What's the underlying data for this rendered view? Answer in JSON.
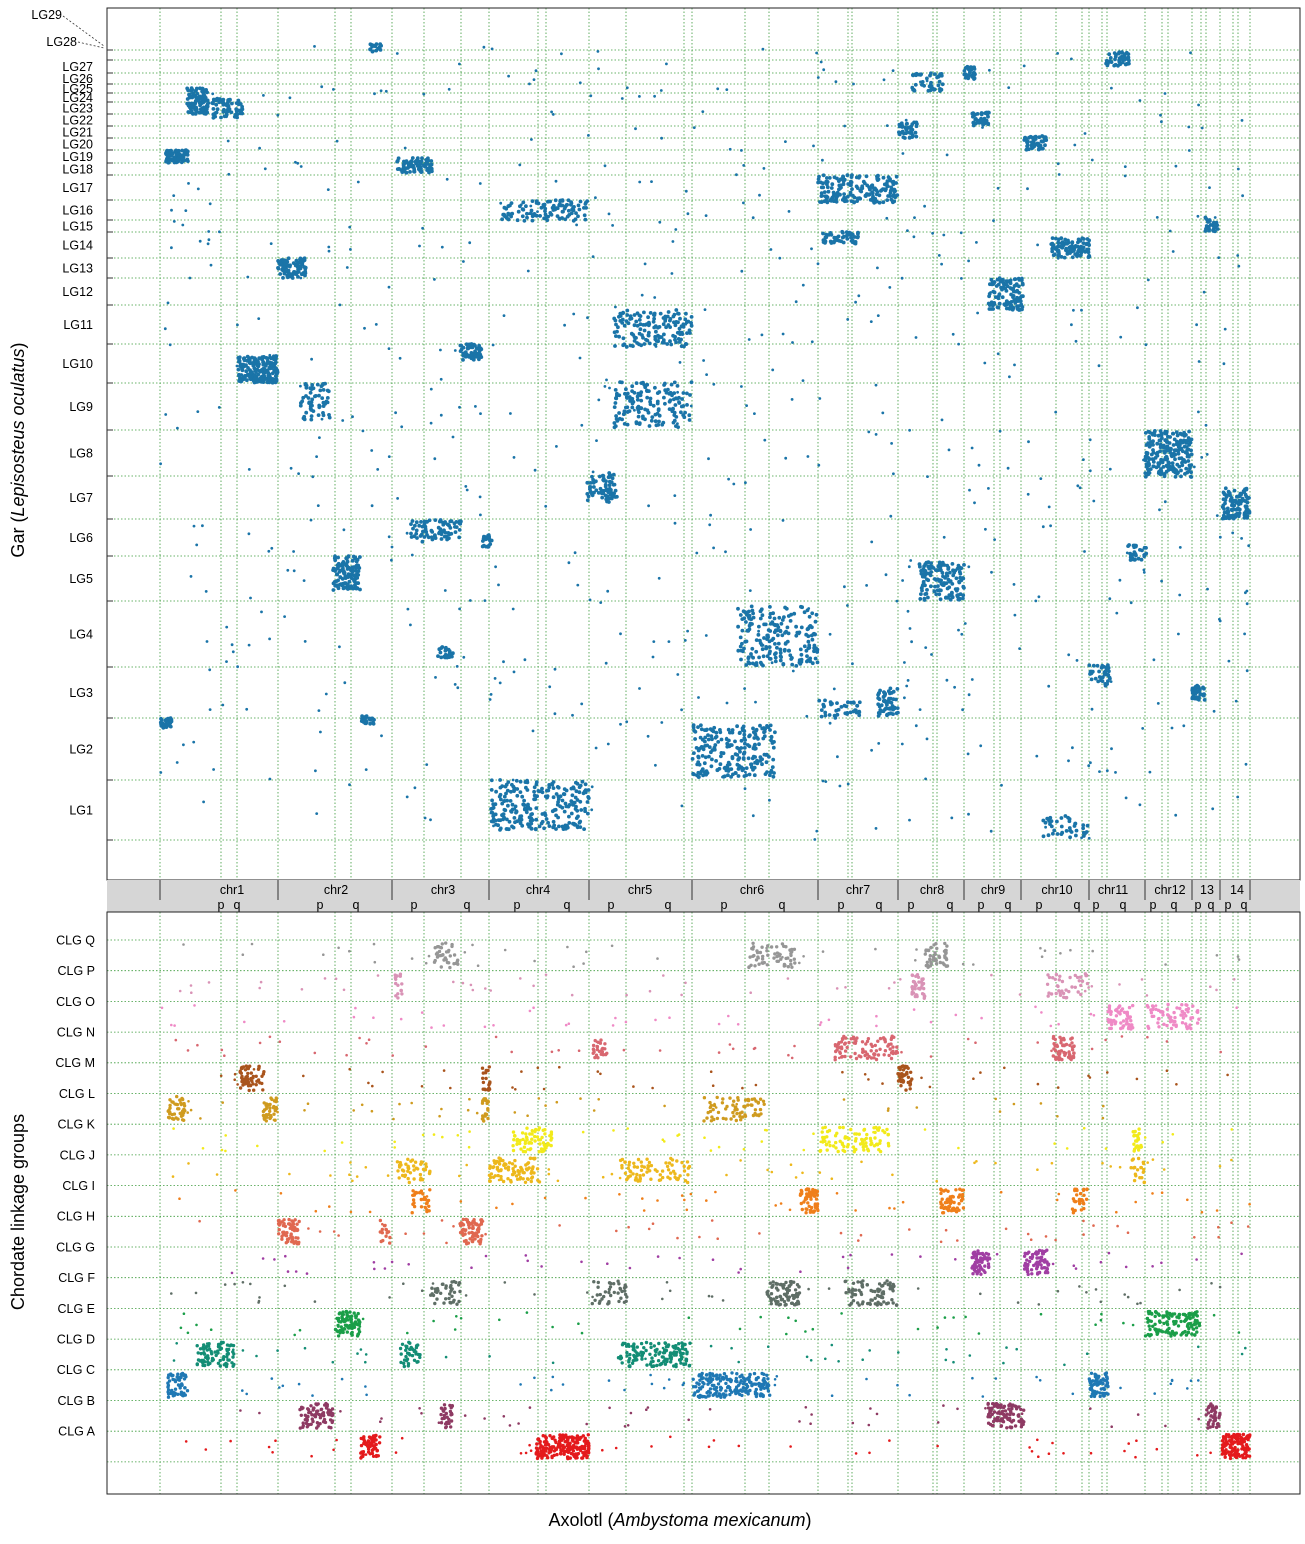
{
  "chart_data": [
    {
      "type": "scatter",
      "title": "",
      "ylabel_plain": "Gar (",
      "ylabel_italic": "Lepisosteus oculatus",
      "ylabel_close": ")",
      "y_categories": [
        "LG1",
        "LG2",
        "LG3",
        "LG4",
        "LG5",
        "LG6",
        "LG7",
        "LG8",
        "LG9",
        "LG10",
        "LG11",
        "LG12",
        "LG13",
        "LG14",
        "LG15",
        "LG16",
        "LG17",
        "LG18",
        "LG19",
        "LG20",
        "LG21",
        "LG22",
        "LG23",
        "LG24",
        "LG25",
        "LG26",
        "LG27",
        "LG28",
        "LG29"
      ],
      "dot_color": "#1a74a8",
      "grid": "dotted green",
      "clusters": [
        {
          "x": "chr1 p",
          "y": "LG19"
        },
        {
          "x": "chr1",
          "y": "LG23"
        },
        {
          "x": "chr1",
          "y": "LG24"
        },
        {
          "x": "chr1 q",
          "y": "LG10"
        },
        {
          "x": "chr1 p",
          "y": "LG2"
        },
        {
          "x": "chr2 p",
          "y": "LG13"
        },
        {
          "x": "chr2",
          "y": "LG9"
        },
        {
          "x": "chr2",
          "y": "LG5"
        },
        {
          "x": "chr2 q",
          "y": "LG2"
        },
        {
          "x": "chr2 q",
          "y": "LG28"
        },
        {
          "x": "chr3 p",
          "y": "LG18"
        },
        {
          "x": "chr3",
          "y": "LG6"
        },
        {
          "x": "chr3 q",
          "y": "LG10"
        },
        {
          "x": "chr3",
          "y": "LG4"
        },
        {
          "x": "chr4",
          "y": "LG16"
        },
        {
          "x": "chr4",
          "y": "LG1"
        },
        {
          "x": "chr5",
          "y": "LG11"
        },
        {
          "x": "chr5",
          "y": "LG9"
        },
        {
          "x": "chr5 p",
          "y": "LG7"
        },
        {
          "x": "chr6",
          "y": "LG2"
        },
        {
          "x": "chr6",
          "y": "LG4"
        },
        {
          "x": "chr7",
          "y": "LG17"
        },
        {
          "x": "chr7",
          "y": "LG15"
        },
        {
          "x": "chr7",
          "y": "LG3"
        },
        {
          "x": "chr8",
          "y": "LG25"
        },
        {
          "x": "chr8",
          "y": "LG21"
        },
        {
          "x": "chr8",
          "y": "LG5"
        },
        {
          "x": "chr9",
          "y": "LG26"
        },
        {
          "x": "chr9",
          "y": "LG22"
        },
        {
          "x": "chr9",
          "y": "LG12"
        },
        {
          "x": "chr10",
          "y": "LG20"
        },
        {
          "x": "chr10",
          "y": "LG14"
        },
        {
          "x": "chr10",
          "y": "LG1"
        },
        {
          "x": "chr11",
          "y": "LG27"
        },
        {
          "x": "chr11",
          "y": "LG3"
        },
        {
          "x": "chr11",
          "y": "LG6"
        },
        {
          "x": "chr12",
          "y": "LG8"
        },
        {
          "x": "13",
          "y": "LG15"
        },
        {
          "x": "13",
          "y": "LG3"
        },
        {
          "x": "14",
          "y": "LG7"
        }
      ]
    },
    {
      "type": "scatter",
      "title": "",
      "ylabel": "Chordate linkage groups",
      "y_categories": [
        "CLG A",
        "CLG B",
        "CLG C",
        "CLG D",
        "CLG E",
        "CLG F",
        "CLG G",
        "CLG H",
        "CLG I",
        "CLG J",
        "CLG K",
        "CLG L",
        "CLG M",
        "CLG N",
        "CLG O",
        "CLG P",
        "CLG Q"
      ],
      "series_colors": {
        "CLG A": "#e41a1c",
        "CLG B": "#8e3a63",
        "CLG C": "#1f78b4",
        "CLG D": "#138d75",
        "CLG E": "#1a9e48",
        "CLG F": "#5f6e66",
        "CLG G": "#a03ea3",
        "CLG H": "#e06850",
        "CLG I": "#ef7f1a",
        "CLG J": "#edb81c",
        "CLG K": "#f2ea1a",
        "CLG L": "#cf9b1f",
        "CLG M": "#a9541c",
        "CLG N": "#d86770",
        "CLG O": "#ef8ac6",
        "CLG P": "#d993b6",
        "CLG Q": "#969696"
      },
      "grid": "dotted green",
      "clusters": [
        {
          "x": "chr1 q",
          "y": "CLG M"
        },
        {
          "x": "chr1 p",
          "y": "CLG L"
        },
        {
          "x": "chr1",
          "y": "CLG D"
        },
        {
          "x": "chr1 p",
          "y": "CLG C"
        },
        {
          "x": "chr2 p",
          "y": "CLG H"
        },
        {
          "x": "chr2",
          "y": "CLG E"
        },
        {
          "x": "chr2 p",
          "y": "CLG B"
        },
        {
          "x": "chr2 q",
          "y": "CLG A"
        },
        {
          "x": "chr3",
          "y": "CLG Q"
        },
        {
          "x": "chr3 q",
          "y": "CLG H"
        },
        {
          "x": "chr3",
          "y": "CLG F"
        },
        {
          "x": "chr3 p",
          "y": "CLG J"
        },
        {
          "x": "chr3 p",
          "y": "CLG D"
        },
        {
          "x": "chr4",
          "y": "CLG K"
        },
        {
          "x": "chr4",
          "y": "CLG J"
        },
        {
          "x": "chr4",
          "y": "CLG A"
        },
        {
          "x": "chr5",
          "y": "CLG D"
        },
        {
          "x": "chr5",
          "y": "CLG J"
        },
        {
          "x": "chr6",
          "y": "CLG Q"
        },
        {
          "x": "chr6",
          "y": "CLG F"
        },
        {
          "x": "chr6",
          "y": "CLG C"
        },
        {
          "x": "chr6",
          "y": "CLG L"
        },
        {
          "x": "chr6 q",
          "y": "CLG I"
        },
        {
          "x": "chr7",
          "y": "CLG N"
        },
        {
          "x": "chr7",
          "y": "CLG K"
        },
        {
          "x": "chr7",
          "y": "CLG F"
        },
        {
          "x": "chr8",
          "y": "CLG Q"
        },
        {
          "x": "chr8",
          "y": "CLG P"
        },
        {
          "x": "chr8 p",
          "y": "CLG M"
        },
        {
          "x": "chr8",
          "y": "CLG I"
        },
        {
          "x": "chr9",
          "y": "CLG G"
        },
        {
          "x": "chr9",
          "y": "CLG B"
        },
        {
          "x": "chr10",
          "y": "CLG N"
        },
        {
          "x": "chr10",
          "y": "CLG G"
        },
        {
          "x": "chr11",
          "y": "CLG O"
        },
        {
          "x": "chr11",
          "y": "CLG K"
        },
        {
          "x": "chr11",
          "y": "CLG C"
        },
        {
          "x": "chr12",
          "y": "CLG E"
        },
        {
          "x": "chr12",
          "y": "CLG O"
        },
        {
          "x": "13",
          "y": "CLG B"
        },
        {
          "x": "14",
          "y": "CLG A"
        }
      ]
    }
  ],
  "shared_x_axis": {
    "xlabel_plain": "Axolotl (",
    "xlabel_italic": "Ambystoma mexicanum",
    "xlabel_close": ")",
    "chromosomes": [
      {
        "name": "chr1",
        "arms": [
          "p",
          "q"
        ]
      },
      {
        "name": "chr2",
        "arms": [
          "p",
          "q"
        ]
      },
      {
        "name": "chr3",
        "arms": [
          "p",
          "q"
        ]
      },
      {
        "name": "chr4",
        "arms": [
          "p",
          "q"
        ]
      },
      {
        "name": "chr5",
        "arms": [
          "p",
          "q"
        ]
      },
      {
        "name": "chr6",
        "arms": [
          "p",
          "q"
        ]
      },
      {
        "name": "chr7",
        "arms": [
          "p",
          "q"
        ]
      },
      {
        "name": "chr8",
        "arms": [
          "p",
          "q"
        ]
      },
      {
        "name": "chr9",
        "arms": [
          "p",
          "q"
        ]
      },
      {
        "name": "chr10",
        "arms": [
          "p",
          "q"
        ]
      },
      {
        "name": "chr11",
        "arms": [
          "p",
          "q"
        ]
      },
      {
        "name": "chr12",
        "arms": [
          "p",
          "q"
        ]
      },
      {
        "name": "13",
        "arms": [
          "p",
          "q"
        ]
      },
      {
        "name": "14",
        "arms": [
          "p",
          "q"
        ]
      }
    ]
  }
}
